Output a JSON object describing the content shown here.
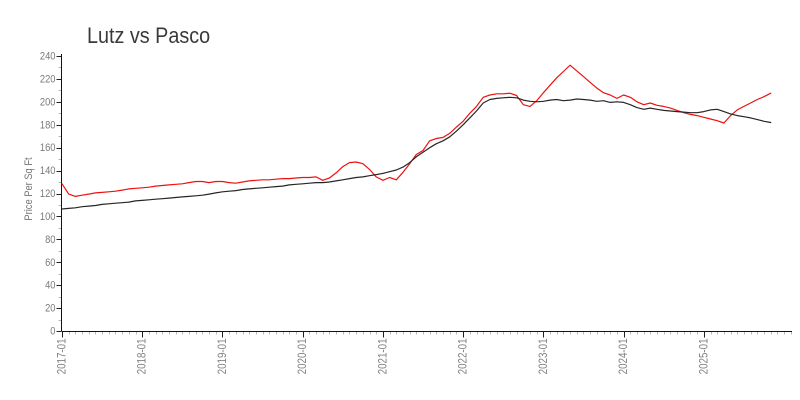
{
  "title": "Lutz vs Pasco",
  "chart_data": {
    "type": "line",
    "title": "Lutz vs Pasco",
    "xlabel": "",
    "ylabel": "Price Per Sq Ft",
    "ylim": [
      0,
      240
    ],
    "y_tick_step": 20,
    "y_tick_labels": [
      "0",
      "20",
      "40",
      "60",
      "80",
      "100",
      "120",
      "140",
      "160",
      "180",
      "200",
      "220",
      "240"
    ],
    "x_major_tick_labels": [
      "2017-01",
      "2018-01",
      "2019-01",
      "2020-01",
      "2021-01",
      "2022-01",
      "2023-01",
      "2024-01",
      "2025-01"
    ],
    "grid": false,
    "legend_position": "none",
    "x": [
      "2017-01",
      "2017-02",
      "2017-03",
      "2017-04",
      "2017-05",
      "2017-06",
      "2017-07",
      "2017-08",
      "2017-09",
      "2017-10",
      "2017-11",
      "2017-12",
      "2018-01",
      "2018-02",
      "2018-03",
      "2018-04",
      "2018-05",
      "2018-06",
      "2018-07",
      "2018-08",
      "2018-09",
      "2018-10",
      "2018-11",
      "2018-12",
      "2019-01",
      "2019-02",
      "2019-03",
      "2019-04",
      "2019-05",
      "2019-06",
      "2019-07",
      "2019-08",
      "2019-09",
      "2019-10",
      "2019-11",
      "2019-12",
      "2020-01",
      "2020-02",
      "2020-03",
      "2020-04",
      "2020-05",
      "2020-06",
      "2020-07",
      "2020-08",
      "2020-09",
      "2020-10",
      "2020-11",
      "2020-12",
      "2021-01",
      "2021-02",
      "2021-03",
      "2021-04",
      "2021-05",
      "2021-06",
      "2021-07",
      "2021-08",
      "2021-09",
      "2021-10",
      "2021-11",
      "2021-12",
      "2022-01",
      "2022-02",
      "2022-03",
      "2022-04",
      "2022-05",
      "2022-06",
      "2022-07",
      "2022-08",
      "2022-09",
      "2022-10",
      "2022-11",
      "2022-12",
      "2023-01",
      "2023-02",
      "2023-03",
      "2023-04",
      "2023-05",
      "2023-06",
      "2023-07",
      "2023-08",
      "2023-09",
      "2023-10",
      "2023-11",
      "2023-12",
      "2024-01",
      "2024-02",
      "2024-03",
      "2024-04",
      "2024-05",
      "2024-06",
      "2024-07",
      "2024-08",
      "2024-09",
      "2024-10",
      "2024-11",
      "2024-12",
      "2025-01",
      "2025-02",
      "2025-03",
      "2025-04",
      "2025-05",
      "2025-06",
      "2025-07",
      "2025-08",
      "2025-09",
      "2025-10",
      "2025-11"
    ],
    "series": [
      {
        "name": "Lutz",
        "color": "#ee1111",
        "values": [
          128.5,
          119.5,
          117.5,
          118.5,
          119.5,
          120.5,
          121,
          121.5,
          122,
          123,
          124,
          124.5,
          125,
          125.5,
          126.5,
          127,
          127.5,
          128,
          128.5,
          129.5,
          130.5,
          130.5,
          129.5,
          130.5,
          130.5,
          129.5,
          129,
          130,
          131,
          131.5,
          132,
          132,
          132.5,
          133,
          133,
          133.5,
          134,
          134,
          134.5,
          131.5,
          133.5,
          138,
          143.5,
          147,
          147.5,
          146,
          141,
          134.5,
          131.5,
          134,
          132,
          138.5,
          146,
          154,
          157.5,
          166,
          168,
          169,
          172.5,
          178,
          183,
          190,
          196,
          204,
          206,
          207,
          207,
          207.5,
          205.5,
          197.5,
          196,
          201,
          208,
          214.5,
          221,
          226.5,
          232,
          227,
          222,
          217,
          212,
          208,
          206,
          203,
          206,
          204,
          200,
          197.5,
          199,
          197,
          196,
          194.5,
          192.5,
          190.5,
          189,
          188,
          186.5,
          185,
          183.5,
          181.5,
          188,
          193,
          196,
          199,
          202,
          204.5,
          207.5
        ]
      },
      {
        "name": "Pasco",
        "color": "#262626",
        "values": [
          106.5,
          107,
          107.5,
          108.5,
          109,
          109.5,
          110.5,
          111,
          111.5,
          112,
          112.5,
          113.5,
          114,
          114.5,
          115,
          115.5,
          116,
          116.5,
          117,
          117.5,
          118,
          118.5,
          119.5,
          120.5,
          121.5,
          122,
          122.5,
          123.5,
          124,
          124.5,
          125,
          125.5,
          126,
          126.5,
          127.5,
          128,
          128.5,
          129,
          129.5,
          129.5,
          130,
          131,
          132,
          133,
          134,
          134.5,
          135.5,
          136.5,
          137.5,
          139,
          140.5,
          143,
          147,
          152,
          156,
          160,
          163.5,
          166,
          169.5,
          174.5,
          180,
          186,
          192,
          199,
          202,
          203,
          203.5,
          204,
          203.5,
          201.5,
          200.5,
          200,
          200.5,
          201.5,
          202,
          201,
          201.5,
          202.5,
          202,
          201.5,
          200.5,
          201,
          199.5,
          200,
          199.5,
          197.5,
          195,
          193.5,
          194.5,
          193.5,
          192.5,
          192,
          191.5,
          191,
          190.5,
          190.5,
          191.5,
          193,
          193.5,
          191.5,
          189.5,
          188,
          187,
          186,
          184.5,
          183,
          182
        ]
      }
    ]
  }
}
